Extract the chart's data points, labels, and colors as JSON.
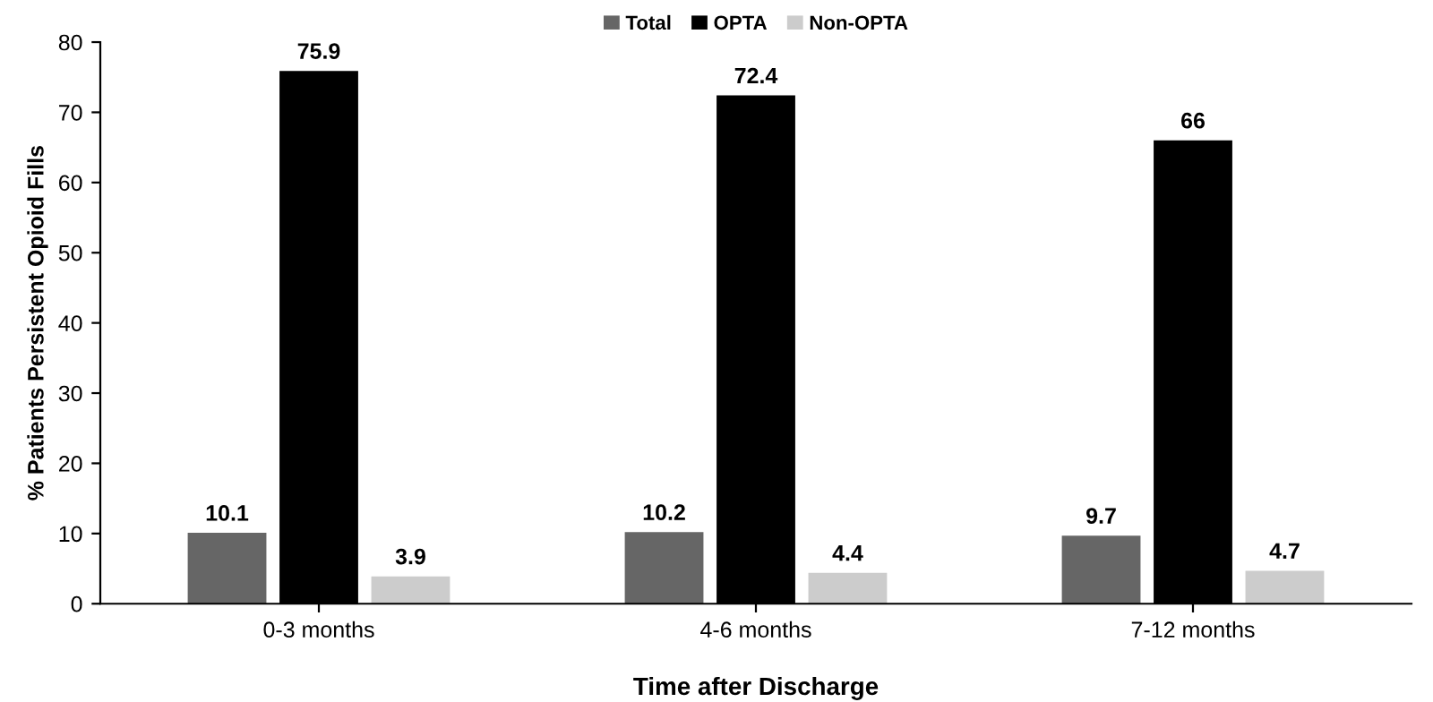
{
  "chart_data": {
    "type": "bar",
    "xlabel": "Time after Discharge",
    "ylabel": "% Patients Persistent Opioid Fills",
    "categories": [
      "0-3 months",
      "4-6 months",
      "7-12 months"
    ],
    "series": [
      {
        "name": "Total",
        "color": "#666666",
        "values": [
          10.1,
          10.2,
          9.7
        ]
      },
      {
        "name": "OPTA",
        "color": "#000000",
        "values": [
          75.9,
          72.4,
          66
        ]
      },
      {
        "name": "Non-OPTA",
        "color": "#cccccc",
        "values": [
          3.9,
          4.4,
          4.7
        ]
      }
    ],
    "ylim": [
      0,
      80
    ],
    "yticks": [
      0,
      10,
      20,
      30,
      40,
      50,
      60,
      70,
      80
    ],
    "grid": false,
    "legend": "top",
    "data_labels": true
  }
}
